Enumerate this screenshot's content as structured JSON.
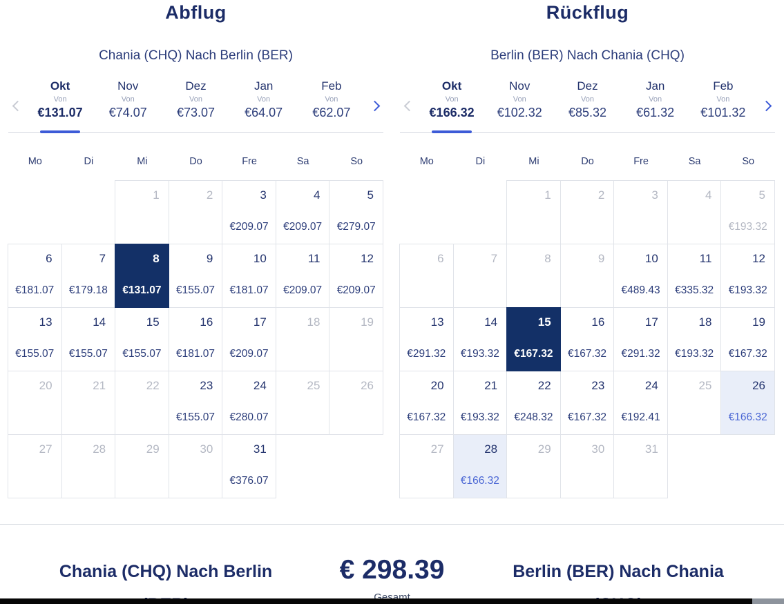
{
  "colors": {
    "navy": "#1c2c67",
    "accent_blue": "#3d5bd7",
    "selected_bg": "#133067",
    "highlight_bg": "#e9eef9",
    "highlight_price": "#4a66d4",
    "disabled_gray": "#b4b8c3",
    "cell_border": "#e0e3e9"
  },
  "departure": {
    "title": "Abflug",
    "route": "Chania (CHQ) Nach Berlin (BER)",
    "months": [
      {
        "label": "Okt",
        "von": "Von",
        "price": "€131.07",
        "active": true
      },
      {
        "label": "Nov",
        "von": "Von",
        "price": "€74.07",
        "active": false
      },
      {
        "label": "Dez",
        "von": "Von",
        "price": "€73.07",
        "active": false
      },
      {
        "label": "Jan",
        "von": "Von",
        "price": "€64.07",
        "active": false
      },
      {
        "label": "Feb",
        "von": "Von",
        "price": "€62.07",
        "active": false
      }
    ],
    "weekdays": [
      "Mo",
      "Di",
      "Mi",
      "Do",
      "Fre",
      "Sa",
      "So"
    ],
    "weeks": [
      [
        {
          "state": "none"
        },
        {
          "state": "none"
        },
        {
          "day": 1,
          "state": "disabled"
        },
        {
          "day": 2,
          "state": "disabled"
        },
        {
          "day": 3,
          "price": "€209.07",
          "state": "available"
        },
        {
          "day": 4,
          "price": "€209.07",
          "state": "available"
        },
        {
          "day": 5,
          "price": "€279.07",
          "state": "available"
        }
      ],
      [
        {
          "day": 6,
          "price": "€181.07",
          "state": "available"
        },
        {
          "day": 7,
          "price": "€179.18",
          "state": "available"
        },
        {
          "day": 8,
          "price": "€131.07",
          "state": "selected"
        },
        {
          "day": 9,
          "price": "€155.07",
          "state": "available"
        },
        {
          "day": 10,
          "price": "€181.07",
          "state": "available"
        },
        {
          "day": 11,
          "price": "€209.07",
          "state": "available"
        },
        {
          "day": 12,
          "price": "€209.07",
          "state": "available"
        }
      ],
      [
        {
          "day": 13,
          "price": "€155.07",
          "state": "available"
        },
        {
          "day": 14,
          "price": "€155.07",
          "state": "available"
        },
        {
          "day": 15,
          "price": "€155.07",
          "state": "available"
        },
        {
          "day": 16,
          "price": "€181.07",
          "state": "available"
        },
        {
          "day": 17,
          "price": "€209.07",
          "state": "available"
        },
        {
          "day": 18,
          "state": "disabled"
        },
        {
          "day": 19,
          "state": "disabled"
        }
      ],
      [
        {
          "day": 20,
          "state": "disabled"
        },
        {
          "day": 21,
          "state": "disabled"
        },
        {
          "day": 22,
          "state": "disabled"
        },
        {
          "day": 23,
          "price": "€155.07",
          "state": "available"
        },
        {
          "day": 24,
          "price": "€280.07",
          "state": "available"
        },
        {
          "day": 25,
          "state": "disabled"
        },
        {
          "day": 26,
          "state": "disabled"
        }
      ],
      [
        {
          "day": 27,
          "state": "disabled"
        },
        {
          "day": 28,
          "state": "disabled"
        },
        {
          "day": 29,
          "state": "disabled"
        },
        {
          "day": 30,
          "state": "disabled"
        },
        {
          "day": 31,
          "price": "€376.07",
          "state": "available"
        },
        {
          "state": "none"
        },
        {
          "state": "none"
        }
      ]
    ]
  },
  "return": {
    "title": "Rückflug",
    "route": "Berlin (BER) Nach Chania (CHQ)",
    "months": [
      {
        "label": "Okt",
        "von": "Von",
        "price": "€166.32",
        "active": true
      },
      {
        "label": "Nov",
        "von": "Von",
        "price": "€102.32",
        "active": false
      },
      {
        "label": "Dez",
        "von": "Von",
        "price": "€85.32",
        "active": false
      },
      {
        "label": "Jan",
        "von": "Von",
        "price": "€61.32",
        "active": false
      },
      {
        "label": "Feb",
        "von": "Von",
        "price": "€101.32",
        "active": false
      }
    ],
    "weekdays": [
      "Mo",
      "Di",
      "Mi",
      "Do",
      "Fre",
      "Sa",
      "So"
    ],
    "weeks": [
      [
        {
          "state": "none"
        },
        {
          "state": "none"
        },
        {
          "day": 1,
          "state": "disabled"
        },
        {
          "day": 2,
          "state": "disabled"
        },
        {
          "day": 3,
          "state": "disabled"
        },
        {
          "day": 4,
          "state": "disabled"
        },
        {
          "day": 5,
          "price": "€193.32",
          "state": "disabled"
        }
      ],
      [
        {
          "day": 6,
          "state": "disabled"
        },
        {
          "day": 7,
          "state": "disabled"
        },
        {
          "day": 8,
          "state": "disabled"
        },
        {
          "day": 9,
          "state": "disabled"
        },
        {
          "day": 10,
          "price": "€489.43",
          "state": "available"
        },
        {
          "day": 11,
          "price": "€335.32",
          "state": "available"
        },
        {
          "day": 12,
          "price": "€193.32",
          "state": "available"
        }
      ],
      [
        {
          "day": 13,
          "price": "€291.32",
          "state": "available"
        },
        {
          "day": 14,
          "price": "€193.32",
          "state": "available"
        },
        {
          "day": 15,
          "price": "€167.32",
          "state": "selected"
        },
        {
          "day": 16,
          "price": "€167.32",
          "state": "available"
        },
        {
          "day": 17,
          "price": "€291.32",
          "state": "available"
        },
        {
          "day": 18,
          "price": "€193.32",
          "state": "available"
        },
        {
          "day": 19,
          "price": "€167.32",
          "state": "available"
        }
      ],
      [
        {
          "day": 20,
          "price": "€167.32",
          "state": "available"
        },
        {
          "day": 21,
          "price": "€193.32",
          "state": "available"
        },
        {
          "day": 22,
          "price": "€248.32",
          "state": "available"
        },
        {
          "day": 23,
          "price": "€167.32",
          "state": "available"
        },
        {
          "day": 24,
          "price": "€192.41",
          "state": "available"
        },
        {
          "day": 25,
          "state": "disabled"
        },
        {
          "day": 26,
          "price": "€166.32",
          "state": "highlight"
        }
      ],
      [
        {
          "day": 27,
          "state": "disabled"
        },
        {
          "day": 28,
          "price": "€166.32",
          "state": "highlight"
        },
        {
          "day": 29,
          "state": "disabled"
        },
        {
          "day": 30,
          "state": "disabled"
        },
        {
          "day": 31,
          "state": "disabled"
        },
        {
          "state": "none"
        },
        {
          "state": "none"
        }
      ]
    ]
  },
  "summary": {
    "outbound_route": "Chania (CHQ) Nach Berlin (BER)",
    "total": "€ 298.39",
    "total_label": "Gesamt",
    "inbound_route": "Berlin (BER) Nach Chania (CHQ)"
  }
}
